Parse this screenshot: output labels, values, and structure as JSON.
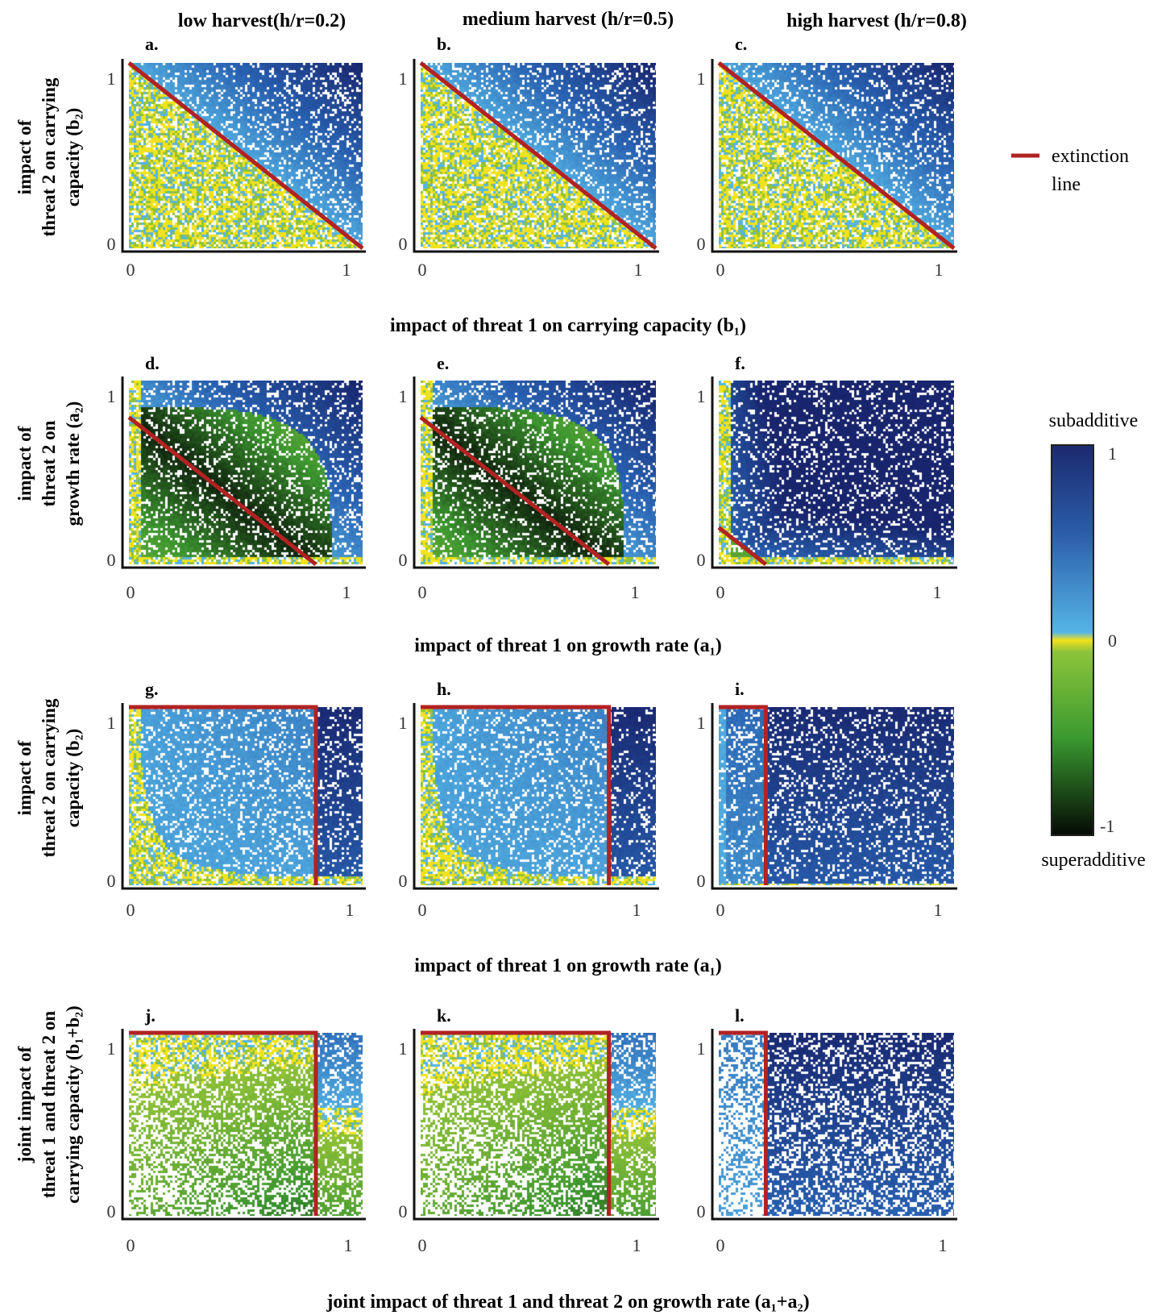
{
  "column_titles": [
    "low harvest(h/r=0.2)",
    "medium harvest (h/r=0.5)",
    "high harvest (h/r=0.8)"
  ],
  "row_ylabels": [
    [
      "impact of",
      "threat 2 on carrying",
      "capacity (b₂)"
    ],
    [
      "impact of",
      "threat 2 on",
      "growth rate (a₂)"
    ],
    [
      "impact of",
      "threat 2 on carrying",
      "capacity (b₂)"
    ],
    [
      "joint impact of",
      "threat 1 and threat 2 on",
      "carrying capacity (b₁+b₂)"
    ]
  ],
  "row_xlabels": [
    "impact of threat 1 on carrying capacity (b₁)",
    "impact of threat 1 on growth rate (a₁)",
    "impact of threat 1 on growth rate (a₁)",
    "joint impact of threat 1 and threat 2 on growth rate (a₁+a₂)"
  ],
  "extinction_legend": [
    "extinction",
    "line"
  ],
  "colorbar": {
    "top_label": "subadditive",
    "bottom_label": "superadditive",
    "ticks": [
      "1",
      "0",
      "-1"
    ],
    "range": [
      -1,
      1
    ],
    "colors": {
      "high": "#1c2a6e",
      "mid_pos": "#55b4e6",
      "zero": "#f2e11a",
      "mid_neg": "#44a632",
      "low": "#050a05"
    }
  },
  "extinction_line_color": "#b22222",
  "chart_data": [
    {
      "type": "heatmap",
      "panel": "a.",
      "xlim": [
        0,
        1
      ],
      "ylim": [
        0,
        1
      ],
      "xticks": [
        "0",
        "1"
      ],
      "yticks": [
        "0",
        "1"
      ],
      "extinction_line": [
        [
          0,
          1
        ],
        [
          1,
          0
        ]
      ],
      "model": "b"
    },
    {
      "type": "heatmap",
      "panel": "b.",
      "xlim": [
        0,
        1
      ],
      "ylim": [
        0,
        1
      ],
      "xticks": [
        "0",
        "1"
      ],
      "yticks": [
        "0",
        "1"
      ],
      "extinction_line": [
        [
          0,
          1
        ],
        [
          1,
          0
        ]
      ],
      "model": "b"
    },
    {
      "type": "heatmap",
      "panel": "c.",
      "xlim": [
        0,
        1
      ],
      "ylim": [
        0,
        1
      ],
      "xticks": [
        "0",
        "1"
      ],
      "yticks": [
        "0",
        "1"
      ],
      "extinction_line": [
        [
          0,
          1
        ],
        [
          1,
          0
        ]
      ],
      "model": "b"
    },
    {
      "type": "heatmap",
      "panel": "d.",
      "xlim": [
        0,
        1
      ],
      "ylim": [
        0,
        1
      ],
      "xticks": [
        "0",
        "1"
      ],
      "yticks": [
        "0",
        "1"
      ],
      "extinction_line": [
        [
          0,
          0.8
        ],
        [
          0.8,
          0
        ]
      ],
      "model": "a",
      "threshold": 0.8
    },
    {
      "type": "heatmap",
      "panel": "e.",
      "xlim": [
        0,
        1
      ],
      "ylim": [
        0,
        1
      ],
      "xticks": [
        "0",
        "1"
      ],
      "yticks": [
        "0",
        "1"
      ],
      "extinction_line": [
        [
          0,
          0.8
        ],
        [
          0.8,
          0
        ]
      ],
      "model": "a",
      "threshold": 0.8
    },
    {
      "type": "heatmap",
      "panel": "f.",
      "xlim": [
        0,
        1
      ],
      "ylim": [
        0,
        1
      ],
      "xticks": [
        "0",
        "1"
      ],
      "yticks": [
        "0",
        "1"
      ],
      "extinction_line": [
        [
          0,
          0.2
        ],
        [
          0.2,
          0
        ]
      ],
      "model": "a",
      "threshold": 0.2
    },
    {
      "type": "heatmap",
      "panel": "g.",
      "xlim": [
        0,
        1
      ],
      "ylim": [
        0,
        1
      ],
      "xticks": [
        "0",
        "1"
      ],
      "yticks": [
        "0",
        "1"
      ],
      "extinction_line": [
        [
          0,
          1
        ],
        [
          0.8,
          1
        ],
        [
          0.8,
          0
        ]
      ],
      "model": "ab",
      "threshold": 0.8
    },
    {
      "type": "heatmap",
      "panel": "h.",
      "xlim": [
        0,
        1
      ],
      "ylim": [
        0,
        1
      ],
      "xticks": [
        "0",
        "1"
      ],
      "yticks": [
        "0",
        "1"
      ],
      "extinction_line": [
        [
          0,
          1
        ],
        [
          0.8,
          1
        ],
        [
          0.8,
          0
        ]
      ],
      "model": "ab",
      "threshold": 0.8
    },
    {
      "type": "heatmap",
      "panel": "i.",
      "xlim": [
        0,
        1
      ],
      "ylim": [
        0,
        1
      ],
      "xticks": [
        "0",
        "1"
      ],
      "yticks": [
        "0",
        "1"
      ],
      "extinction_line": [
        [
          0,
          1
        ],
        [
          0.2,
          1
        ],
        [
          0.2,
          0
        ]
      ],
      "model": "ab",
      "threshold": 0.2
    },
    {
      "type": "heatmap",
      "panel": "j.",
      "xlim": [
        0,
        1
      ],
      "ylim": [
        0,
        1
      ],
      "xticks": [
        "0",
        "1"
      ],
      "yticks": [
        "0",
        "1"
      ],
      "extinction_line": [
        [
          0,
          1
        ],
        [
          0.8,
          1
        ],
        [
          0.8,
          0
        ]
      ],
      "model": "joint",
      "threshold": 0.8
    },
    {
      "type": "heatmap",
      "panel": "k.",
      "xlim": [
        0,
        1
      ],
      "ylim": [
        0,
        1
      ],
      "xticks": [
        "0",
        "1"
      ],
      "yticks": [
        "0",
        "1"
      ],
      "extinction_line": [
        [
          0,
          1
        ],
        [
          0.8,
          1
        ],
        [
          0.8,
          0
        ]
      ],
      "model": "joint",
      "threshold": 0.8
    },
    {
      "type": "heatmap",
      "panel": "l.",
      "xlim": [
        0,
        1
      ],
      "ylim": [
        0,
        1
      ],
      "xticks": [
        "0",
        "1"
      ],
      "yticks": [
        "0",
        "1"
      ],
      "extinction_line": [
        [
          0,
          1
        ],
        [
          0.2,
          1
        ],
        [
          0.2,
          0
        ]
      ],
      "model": "joint",
      "threshold": 0.2
    }
  ]
}
